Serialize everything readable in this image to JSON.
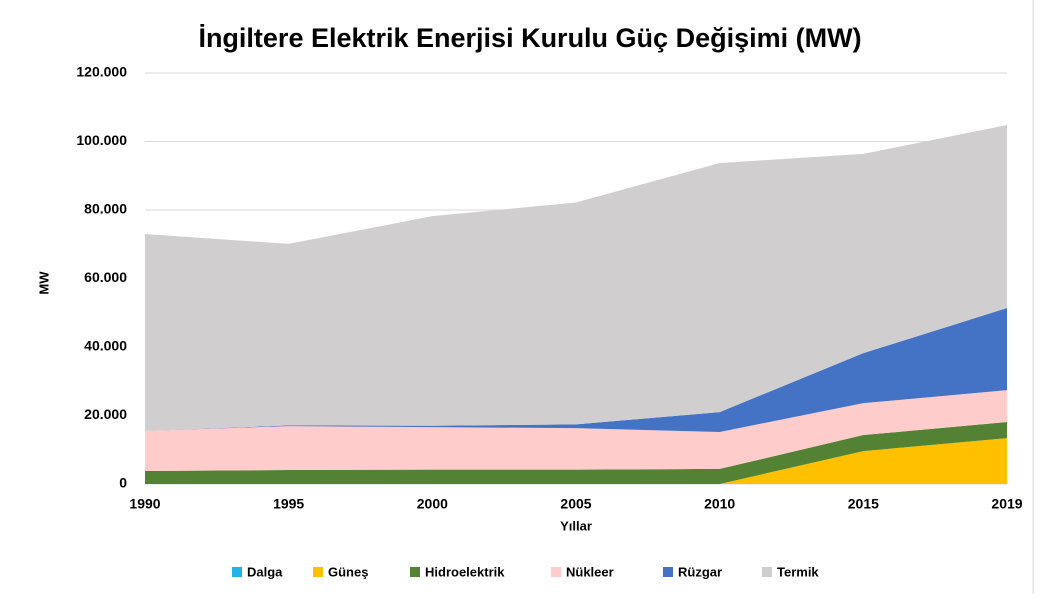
{
  "chart_data": {
    "type": "stacked_area",
    "title": "İngiltere Elektrik Enerjisi Kurulu Güç Değişimi (MW)",
    "x_label": "Yıllar",
    "y_label": "MW",
    "categories": [
      "1990",
      "1995",
      "2000",
      "2005",
      "2010",
      "2015",
      "2019"
    ],
    "series": [
      {
        "name": "Dalga",
        "color": "#1fb3e8",
        "values": [
          0,
          0,
          0,
          0,
          0,
          0,
          0
        ]
      },
      {
        "name": "Güneş",
        "color": "#ffc000",
        "values": [
          0,
          0,
          0,
          0,
          0,
          9600,
          13400
        ]
      },
      {
        "name": "Hidroelektrik",
        "color": "#548235",
        "values": [
          3800,
          4100,
          4200,
          4200,
          4400,
          4700,
          4700
        ]
      },
      {
        "name": "Nükleer",
        "color": "#ffcccc",
        "values": [
          11700,
          12800,
          12400,
          12100,
          10800,
          9300,
          9300
        ]
      },
      {
        "name": "Rüzgar",
        "color": "#4472c4",
        "values": [
          0,
          200,
          400,
          1100,
          5800,
          14600,
          24000
        ]
      },
      {
        "name": "Termik",
        "color": "#d0cece",
        "values": [
          57500,
          53000,
          61200,
          64800,
          72700,
          58200,
          53400
        ]
      }
    ],
    "ylim": [
      0,
      120000
    ],
    "yticks": [
      0,
      {
        "value": 20000,
        "label": "20.000"
      },
      {
        "value": 40000,
        "label": "40.000"
      },
      {
        "value": 60000,
        "label": "60.000"
      },
      {
        "value": 80000,
        "label": "80.000"
      },
      {
        "value": 100000,
        "label": "100.000"
      },
      {
        "value": 120000,
        "label": "120.000"
      }
    ],
    "grid": true,
    "legend": "bottom"
  }
}
